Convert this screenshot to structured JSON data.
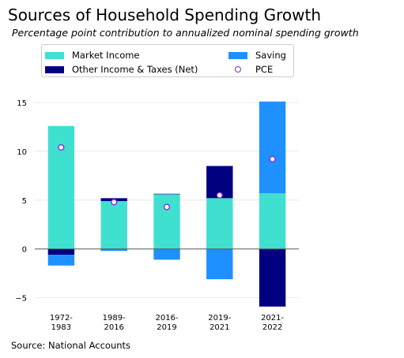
{
  "chart_data": {
    "type": "bar",
    "stacked": true,
    "title": "Sources of Household Spending Growth",
    "subtitle": "Percentage point contribution to annualized nominal spending growth",
    "categories": [
      [
        "1972-",
        "1983"
      ],
      [
        "1989-",
        "2016"
      ],
      [
        "2016-",
        "2019"
      ],
      [
        "2019-",
        "2021"
      ],
      [
        "2021-",
        "2022"
      ]
    ],
    "series": [
      {
        "name": "Market Income",
        "color": "#40e0d0",
        "values": [
          12.6,
          4.9,
          5.6,
          5.2,
          5.7
        ]
      },
      {
        "name": "Other Income & Taxes (Net)",
        "color": "#000080",
        "values": [
          -0.6,
          0.3,
          0.05,
          3.3,
          -5.9
        ]
      },
      {
        "name": "Saving",
        "color": "#1e90ff",
        "values": [
          -1.1,
          -0.2,
          -1.1,
          -3.1,
          9.4
        ]
      }
    ],
    "overlay": {
      "name": "PCE",
      "type": "scatter",
      "color": "#8a2be2",
      "values": [
        10.4,
        4.8,
        4.3,
        5.5,
        9.2
      ]
    },
    "ylim": [
      -6,
      15
    ],
    "yticks": [
      -5,
      0,
      5,
      10,
      15
    ],
    "ytick_labels": [
      "−5",
      "0",
      "5",
      "10",
      "15"
    ],
    "grid": "horizontal",
    "legend_position": "top-left",
    "source": "Source: National Accounts"
  }
}
